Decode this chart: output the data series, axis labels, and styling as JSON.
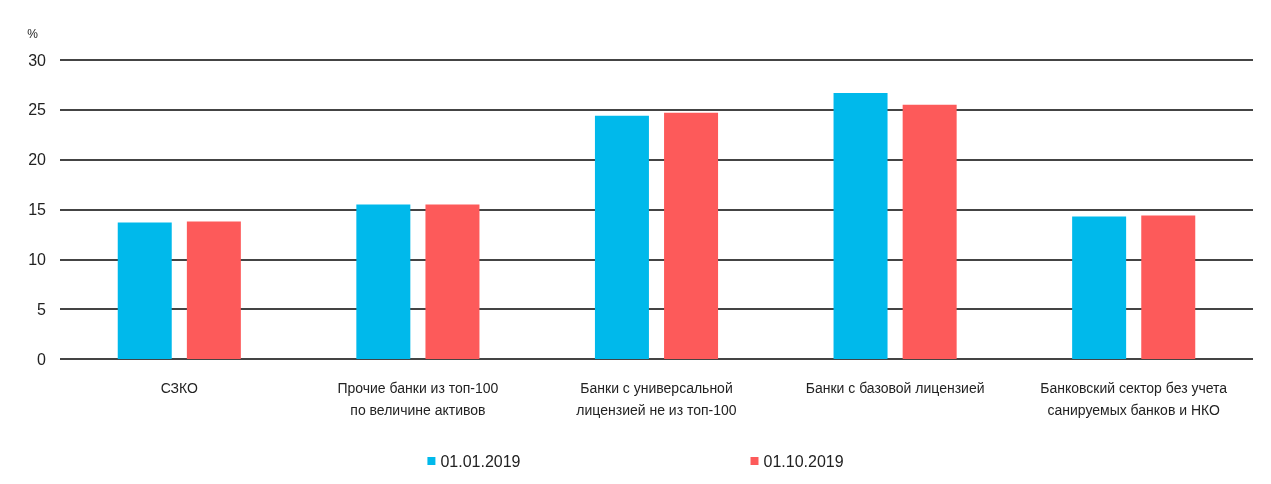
{
  "chart_data": {
    "type": "bar",
    "ylabel": "%",
    "categories": [
      "СЗКО",
      "Прочие банки из топ-100\nпо величине активов",
      "Банки с универсальной\nлицензией не из топ-100",
      "Банки с базовой лицензией",
      "Банковский сектор без учета\nсанируемых банков и НКО"
    ],
    "series": [
      {
        "name": "01.01.2019",
        "color": "#00b9eb",
        "values": [
          13.7,
          15.5,
          24.4,
          26.7,
          14.3
        ]
      },
      {
        "name": "01.10.2019",
        "color": "#fd5a5a",
        "values": [
          13.8,
          15.5,
          24.7,
          25.5,
          14.4
        ]
      }
    ],
    "ylim": [
      0,
      30
    ],
    "yticks": [
      0,
      5,
      10,
      15,
      20,
      25,
      30
    ],
    "grid": "y",
    "legend": "bottom"
  }
}
